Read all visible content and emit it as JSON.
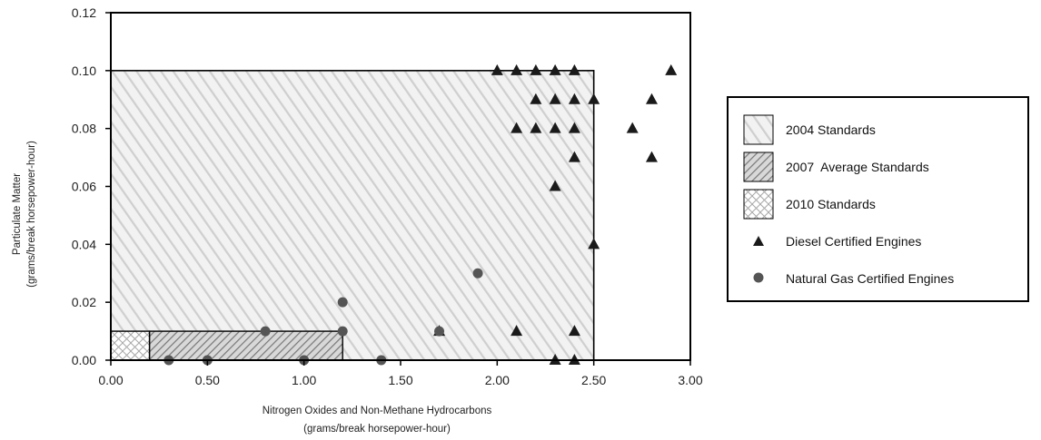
{
  "chart_data": {
    "type": "scatter",
    "xlabel": "Nitrogen Oxides and Non-Methane Hydrocarbons",
    "xlabel_sub": "(grams/break horsepower-hour)",
    "ylabel": "Particulate Matter",
    "ylabel_sub": "(grams/break horsepower-hour)",
    "xlim": [
      0,
      3.0
    ],
    "ylim": [
      0,
      0.12
    ],
    "x_ticks": [
      0,
      0.5,
      1.0,
      1.5,
      2.0,
      2.5,
      3.0
    ],
    "x_tick_labels": [
      "0.00",
      "0.50",
      "1.00",
      "1.50",
      "2.00",
      "2.50",
      "3.00"
    ],
    "y_ticks": [
      0,
      0.02,
      0.04,
      0.06,
      0.08,
      0.1,
      0.12
    ],
    "y_tick_labels": [
      "0.00",
      "0.02",
      "0.04",
      "0.06",
      "0.08",
      "0.10",
      "0.12"
    ],
    "grid": false,
    "legend_position": "right",
    "regions": [
      {
        "name": "2004 Standards",
        "x": [
          0,
          2.5
        ],
        "y": [
          0,
          0.1
        ],
        "pattern": "light-diagonal"
      },
      {
        "name": "2007 Average Standards",
        "x": [
          0.2,
          1.2
        ],
        "y": [
          0,
          0.01
        ],
        "pattern": "dark-diagonal"
      },
      {
        "name": "2010 Standards",
        "x": [
          0,
          0.2
        ],
        "y": [
          0,
          0.01
        ],
        "pattern": "crosshatch"
      }
    ],
    "series": [
      {
        "name": "Diesel Certified Engines",
        "marker": "triangle",
        "points": [
          [
            2.0,
            0.1
          ],
          [
            2.1,
            0.1
          ],
          [
            2.2,
            0.1
          ],
          [
            2.3,
            0.1
          ],
          [
            2.4,
            0.1
          ],
          [
            2.9,
            0.1
          ],
          [
            2.2,
            0.09
          ],
          [
            2.3,
            0.09
          ],
          [
            2.4,
            0.09
          ],
          [
            2.5,
            0.09
          ],
          [
            2.8,
            0.09
          ],
          [
            2.1,
            0.08
          ],
          [
            2.2,
            0.08
          ],
          [
            2.3,
            0.08
          ],
          [
            2.4,
            0.08
          ],
          [
            2.7,
            0.08
          ],
          [
            2.4,
            0.07
          ],
          [
            2.8,
            0.07
          ],
          [
            2.3,
            0.06
          ],
          [
            2.5,
            0.04
          ],
          [
            1.7,
            0.01
          ],
          [
            2.1,
            0.01
          ],
          [
            2.4,
            0.01
          ],
          [
            2.3,
            0.0
          ],
          [
            2.4,
            0.0
          ]
        ]
      },
      {
        "name": "Natural Gas Certified Engines",
        "marker": "circle",
        "points": [
          [
            1.9,
            0.03
          ],
          [
            1.2,
            0.02
          ],
          [
            0.8,
            0.01
          ],
          [
            1.2,
            0.01
          ],
          [
            1.7,
            0.01
          ],
          [
            0.3,
            0.0
          ],
          [
            0.5,
            0.0
          ],
          [
            1.0,
            0.0
          ],
          [
            1.4,
            0.0
          ]
        ]
      }
    ],
    "legend": [
      {
        "label": "2004 Standards",
        "type": "light-diagonal"
      },
      {
        "label": "2007  Average Standards",
        "type": "dark-diagonal"
      },
      {
        "label": "2010 Standards",
        "type": "crosshatch"
      },
      {
        "label": "Diesel Certified Engines",
        "type": "triangle"
      },
      {
        "label": "Natural Gas Certified Engines",
        "type": "circle"
      }
    ],
    "colors": {
      "marker_fill": "#1a1a1a",
      "circle_fill": "#555555",
      "light_hatch_bg": "#f2f2f2",
      "light_hatch_line": "#cfcfcf",
      "dark_hatch_line": "#777777",
      "cross_line": "#a8a8a8"
    }
  }
}
